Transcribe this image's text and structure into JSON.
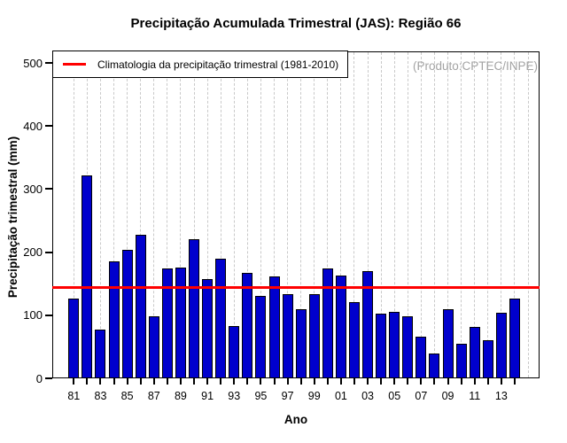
{
  "figure": {
    "title": "Precipitação Acumulada Trimestral (JAS): Região 66",
    "xlabel": "Ano",
    "ylabel": "Precipitação trimestral (mm)",
    "legend_label": "Climatologia da precipitação trimestral (1981-2010)",
    "annotation": "(Produto:CPTEC/INPE)"
  },
  "chart_data": {
    "type": "bar",
    "title": "Precipitação Acumulada Trimestral (JAS): Região 66",
    "xlabel": "Ano",
    "ylabel": "Precipitação trimestral (mm)",
    "ylim": [
      0,
      518
    ],
    "yticks": [
      0,
      100,
      200,
      300,
      400,
      500
    ],
    "grid": "vertical-dashed",
    "grid_years_extend_to": 2015,
    "legend_position": "top-left",
    "legend_entries": [
      "Climatologia da precipitação trimestral (1981-2010)"
    ],
    "annotation": "(Produto:CPTEC/INPE)",
    "categories": [
      1981,
      1982,
      1983,
      1984,
      1985,
      1986,
      1987,
      1988,
      1989,
      1990,
      1991,
      1992,
      1993,
      1994,
      1995,
      1996,
      1997,
      1998,
      1999,
      2000,
      2001,
      2002,
      2003,
      2004,
      2005,
      2006,
      2007,
      2008,
      2009,
      2010,
      2011,
      2012,
      2013,
      2014
    ],
    "values": [
      127,
      321,
      77,
      186,
      204,
      227,
      99,
      174,
      175,
      220,
      158,
      190,
      83,
      167,
      131,
      162,
      133,
      109,
      133,
      174,
      163,
      121,
      170,
      102,
      105,
      98,
      66,
      39,
      110,
      55,
      82,
      61,
      104,
      126
    ],
    "xtick_labels": [
      "81",
      "83",
      "85",
      "87",
      "89",
      "91",
      "93",
      "95",
      "97",
      "99",
      "01",
      "03",
      "05",
      "07",
      "09",
      "11",
      "13"
    ],
    "climatology_line": {
      "value": 144,
      "color": "#FF0000"
    },
    "colors": {
      "bar_fill": "#0000CD",
      "bar_border": "#000000",
      "climatology": "#FF0000",
      "annotation_gray": "#a3a3a3",
      "gridline": "#c9c9c9"
    }
  }
}
